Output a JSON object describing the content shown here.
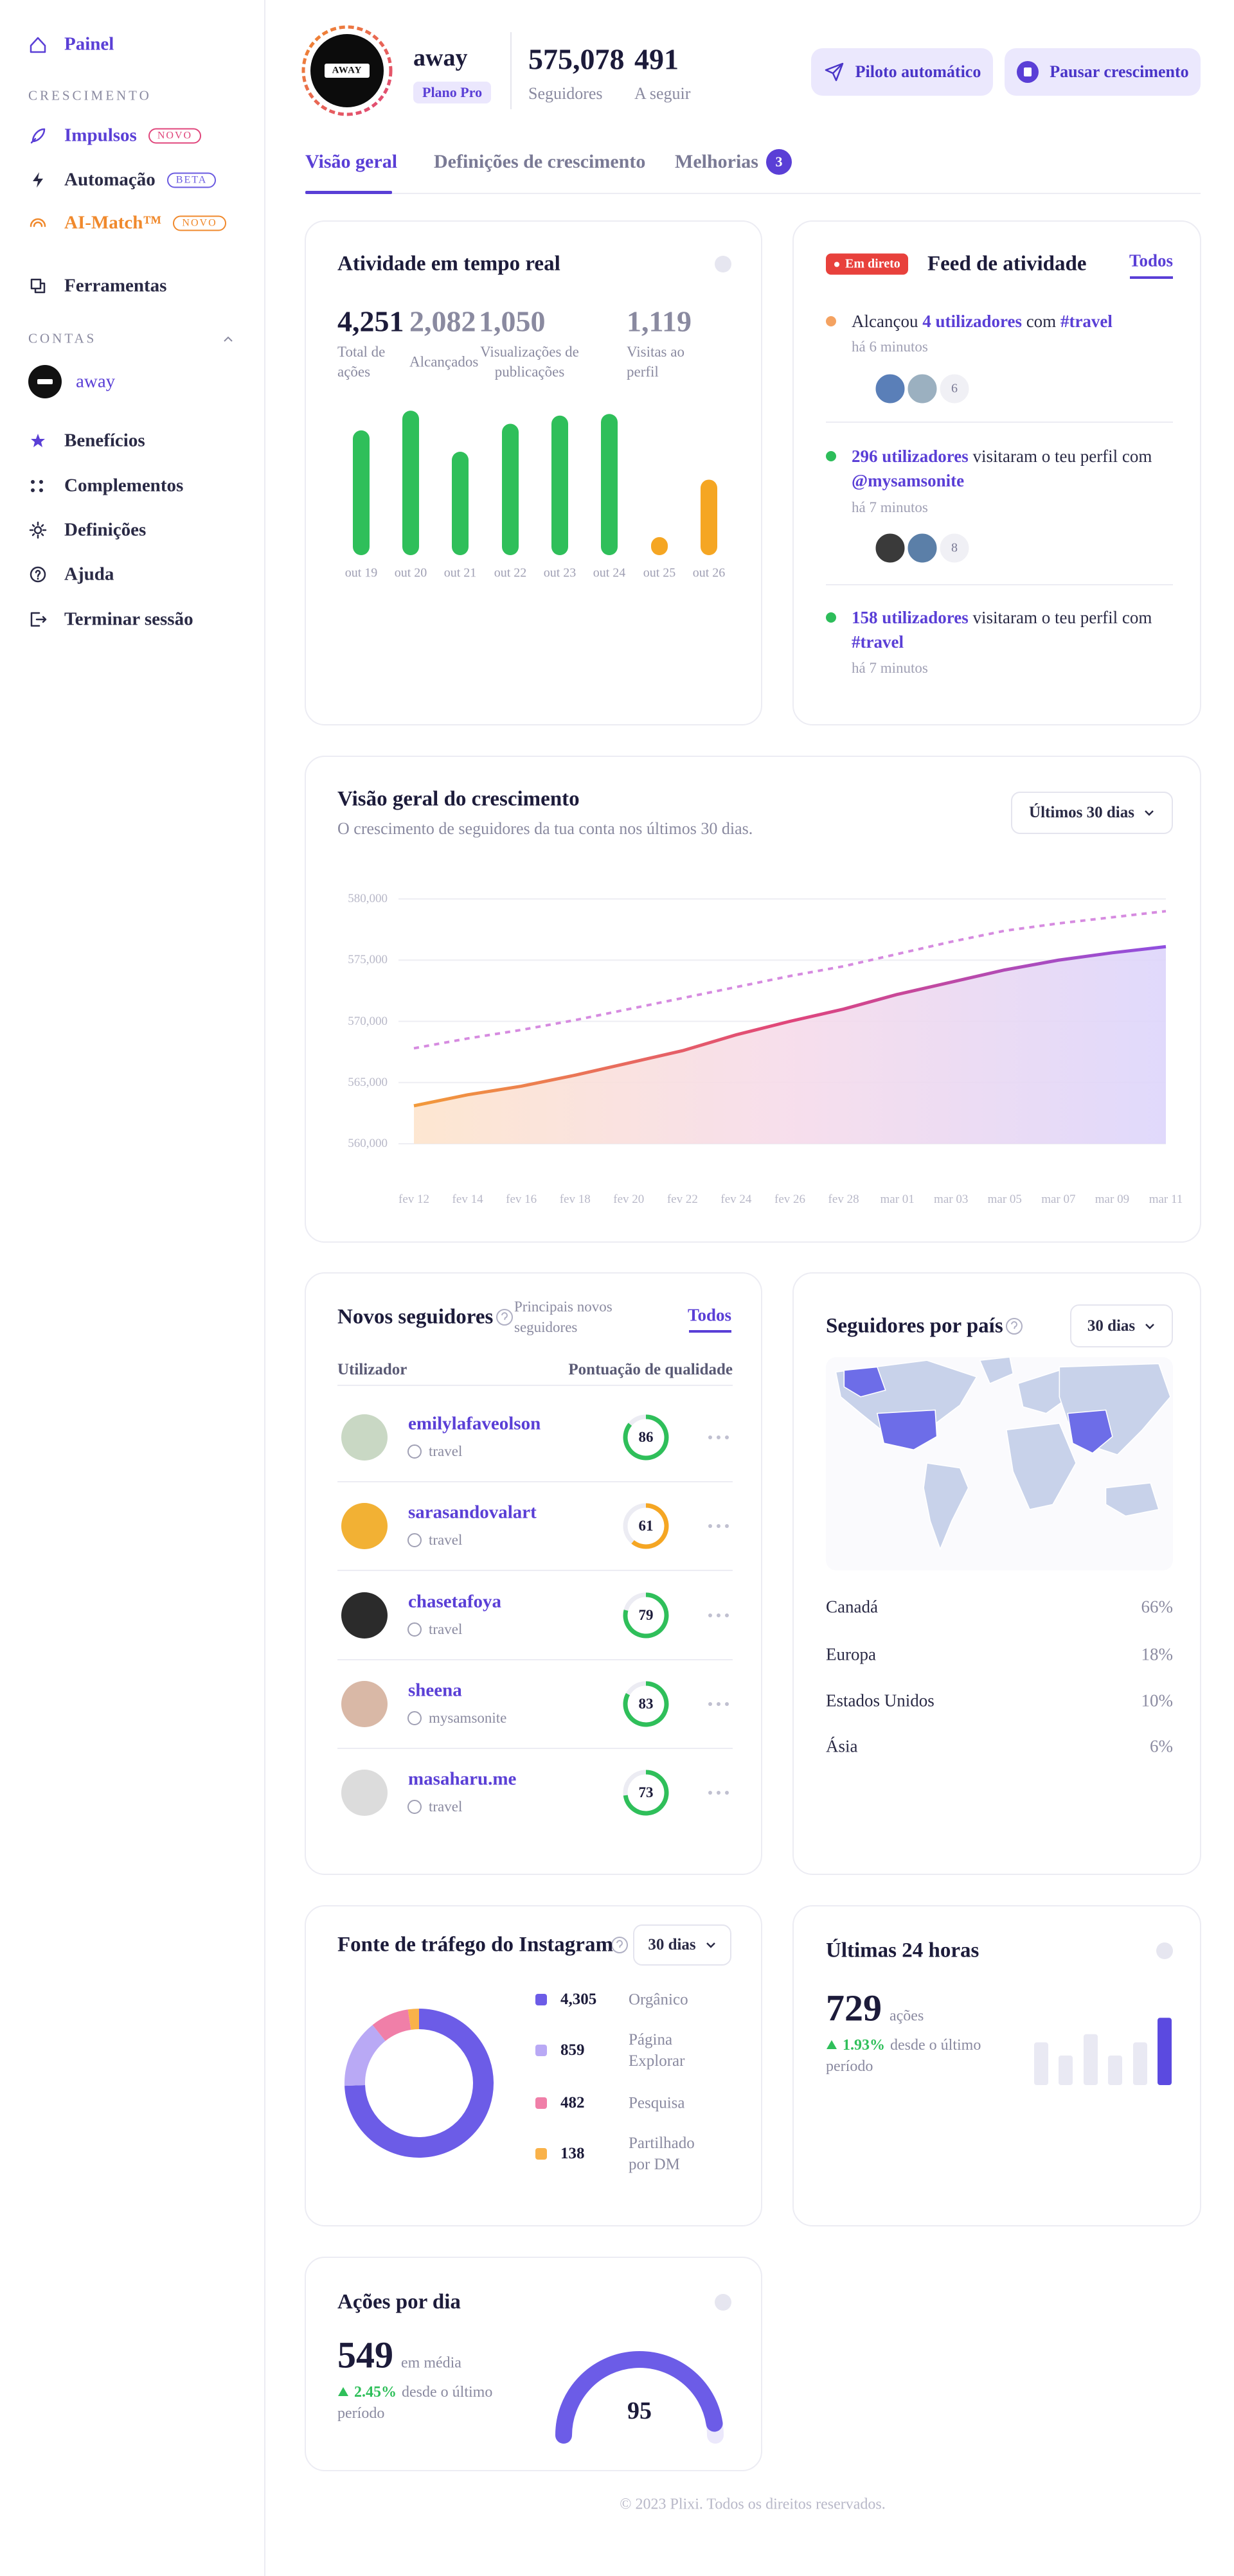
{
  "sidebar": {
    "dashboard": "Painel",
    "growth_section": "CRESCIMENTO",
    "growth_items": [
      {
        "label": "Impulsos",
        "badge": "NOVO"
      },
      {
        "label": "Automação",
        "badge": "BETA"
      },
      {
        "label": "AI-Match™",
        "badge": "NOVO"
      }
    ],
    "tools": "Ferramentas",
    "accounts_section": "CONTAS",
    "account": "away",
    "bottom_items": [
      "Benefícios",
      "Complementos",
      "Definições",
      "Ajuda",
      "Terminar sessão"
    ]
  },
  "header": {
    "avatar_text": "AWAY",
    "name": "away",
    "plan": "Plano Pro",
    "stats": [
      {
        "value": "575,078",
        "label": "Seguidores"
      },
      {
        "value": "491",
        "label": "A seguir"
      }
    ],
    "buttons": [
      "Piloto automático",
      "Pausar crescimento"
    ]
  },
  "tabs": {
    "items": [
      "Visão geral",
      "Definições de crescimento",
      "Melhorias"
    ],
    "badge": "3"
  },
  "realtime": {
    "title": "Atividade em tempo real",
    "stats": [
      {
        "value": "4,251",
        "label": "Total de ações"
      },
      {
        "value": "2,082",
        "label": "Alcançados"
      },
      {
        "value": "1,050",
        "label": "Visualizações de publicações"
      },
      {
        "value": "1,119",
        "label": "Visitas ao perfil"
      }
    ],
    "chart": {
      "type": "bar",
      "categories": [
        "out 19",
        "out 20",
        "out 21",
        "out 22",
        "out 23",
        "out 24",
        "out 25",
        "out 26"
      ],
      "values": [
        76,
        88,
        63,
        80,
        85,
        86,
        11,
        46
      ],
      "colors": [
        "#2fbf5a",
        "#2fbf5a",
        "#2fbf5a",
        "#2fbf5a",
        "#2fbf5a",
        "#2fbf5a",
        "#f5a623",
        "#f5a623"
      ],
      "ylim": [
        0,
        90
      ]
    }
  },
  "feed": {
    "live": "Em direto",
    "title": "Feed de atividade",
    "link": "Todos",
    "items": [
      {
        "parts": [
          {
            "text": "Alcançou "
          },
          {
            "text": "4 utilizadores",
            "strong": true
          },
          {
            "text": " com "
          },
          {
            "text": "#travel",
            "strong": true
          }
        ],
        "time": "há 6 minutos",
        "more": "6",
        "dot": "#f4a261"
      },
      {
        "parts": [
          {
            "text": "296 utilizadores",
            "strong": true
          },
          {
            "text": " visitaram o teu perfil com "
          },
          {
            "text": "@mysamsonite",
            "strong": true
          }
        ],
        "time": "há 7 minutos",
        "more": "8",
        "dot": "#2dbd5a"
      },
      {
        "parts": [
          {
            "text": "158 utilizadores",
            "strong": true
          },
          {
            "text": " visitaram o teu perfil com "
          },
          {
            "text": "#travel",
            "strong": true
          }
        ],
        "time": "há 7 minutos",
        "dot": "#2dbd5a"
      }
    ]
  },
  "growth": {
    "title": "Visão geral do crescimento",
    "subtitle": "O crescimento de seguidores da tua conta nos últimos 30 dias.",
    "range": "Últimos 30 dias",
    "chart": {
      "type": "line",
      "categories": [
        "fev 12",
        "fev 14",
        "fev 16",
        "fev 18",
        "fev 20",
        "fev 22",
        "fev 24",
        "fev 26",
        "fev 28",
        "mar 01",
        "mar 03",
        "mar 05",
        "mar 07",
        "mar 09",
        "mar 11"
      ],
      "series": [
        {
          "colors": [
            "#f29a3a",
            "#e0457b",
            "#8f4fe0"
          ],
          "area": true,
          "values": [
            563100,
            564000,
            564700,
            565600,
            566600,
            567600,
            568900,
            570000,
            571000,
            572200,
            573200,
            574200,
            575000,
            575600,
            576100
          ]
        },
        {
          "color": "#d68be0",
          "dashed": true,
          "values": [
            567800,
            568600,
            569300,
            570100,
            571000,
            571900,
            572800,
            573700,
            574500,
            575500,
            576500,
            577400,
            578000,
            578500,
            579000
          ]
        }
      ],
      "ylim": [
        560000,
        580000
      ],
      "yticks": [
        {
          "value": 560000,
          "label": "560,000"
        },
        {
          "value": 565000,
          "label": "565,000"
        },
        {
          "value": 570000,
          "label": "570,000"
        },
        {
          "value": 575000,
          "label": "575,000"
        },
        {
          "value": 580000,
          "label": "580,000"
        }
      ],
      "grid": true
    }
  },
  "new_followers": {
    "title": "Novos seguidores",
    "subtitle": "Principais novos seguidores",
    "link": "Todos",
    "columns": [
      "Utilizador",
      "Pontuação de qualidade"
    ],
    "rows": [
      {
        "user": "emilylafaveolson",
        "tag": "travel",
        "score": 86,
        "color": "#2fbf5a"
      },
      {
        "user": "sarasandovalart",
        "tag": "travel",
        "score": 61,
        "color": "#f5a623"
      },
      {
        "user": "chasetafoya",
        "tag": "travel",
        "score": 79,
        "color": "#2fbf5a"
      },
      {
        "user": "sheena",
        "tag": "mysamsonite",
        "score": 83,
        "color": "#2fbf5a"
      },
      {
        "user": "masaharu.me",
        "tag": "travel",
        "score": 73,
        "color": "#2fbf5a"
      }
    ]
  },
  "countries": {
    "title": "Seguidores por país",
    "range": "30 dias",
    "rows": [
      {
        "name": "Canadá",
        "share": "66%"
      },
      {
        "name": "Europa",
        "share": "18%"
      },
      {
        "name": "Estados Unidos",
        "share": "10%"
      },
      {
        "name": "Ásia",
        "share": "6%"
      }
    ]
  },
  "traffic": {
    "title": "Fonte de tráfego do Instagram",
    "range": "30 dias",
    "chart": {
      "type": "donut",
      "categories": [
        "Orgânico",
        "Página Explorar",
        "Pesquisa",
        "Partilhado por DM"
      ],
      "values": [
        4305,
        859,
        482,
        138
      ],
      "value_labels": [
        "4,305",
        "859",
        "482",
        "138"
      ],
      "colors": [
        "#6c5ce7",
        "#b9a9f5",
        "#f07fa8",
        "#f9b24a"
      ]
    }
  },
  "last24": {
    "title": "Últimas 24 horas",
    "value": "729",
    "unit": "ações",
    "change": "1.93%",
    "change_note": "desde o último período",
    "bars": {
      "type": "bar",
      "values": [
        26,
        18,
        31,
        18,
        26,
        41
      ],
      "colors": [
        "#e9e9f3",
        "#e9e9f3",
        "#e9e9f3",
        "#e9e9f3",
        "#e9e9f3",
        "#5b4ae0"
      ],
      "ylim": [
        0,
        45
      ]
    }
  },
  "daily": {
    "title": "Ações por dia",
    "value": "549",
    "unit": "em média",
    "change": "2.45%",
    "change_note": "desde o último período",
    "gauge": {
      "type": "gauge",
      "value": 95,
      "range": [
        0,
        100
      ]
    }
  },
  "footer": "© 2023 Plixi. Todos os direitos reservados."
}
